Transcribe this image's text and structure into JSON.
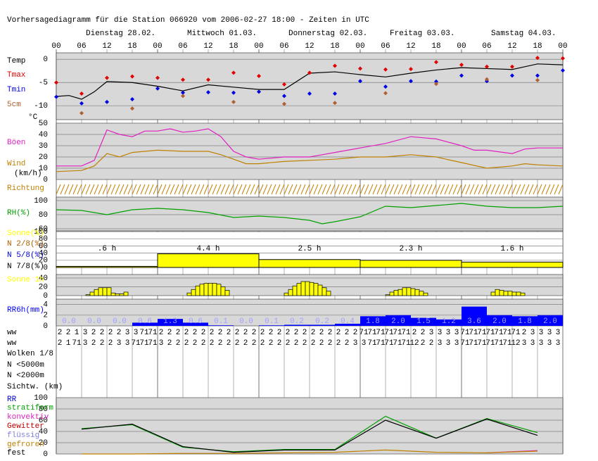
{
  "header": {
    "title": "Vorhersagediagramm für die Station 066920 vom 2006-02-27 18:00 - Zeiten in UTC",
    "days": [
      "Dienstag 28.02.",
      "Mittwoch 01.03.",
      "Donnerstag 02.03.",
      "Freitag 03.03.",
      "Samstag 04.03."
    ],
    "hours": [
      "00",
      "06",
      "12",
      "18",
      "00",
      "06",
      "12",
      "18",
      "00",
      "06",
      "12",
      "18",
      "00",
      "06",
      "12",
      "18",
      "00",
      "06",
      "12",
      "18",
      "00"
    ]
  },
  "chart_data": [
    {
      "type": "line",
      "y_label": "°C",
      "ylim": [
        -13,
        1.4
      ],
      "yticks": [
        0,
        -5,
        -10
      ],
      "series": [
        {
          "name": "Temp",
          "color": "#000000",
          "style": "line",
          "x": [
            0,
            3,
            6,
            9,
            12,
            18,
            24,
            30,
            36,
            42,
            48,
            54,
            60,
            66,
            72,
            78,
            84,
            90,
            96,
            102,
            108,
            114,
            120
          ],
          "values": [
            -8,
            -7.8,
            -8.6,
            -7,
            -4.8,
            -5,
            -5.8,
            -6.8,
            -5.5,
            -6,
            -6.5,
            -6.5,
            -3,
            -2.7,
            -3.3,
            -3.8,
            -3,
            -2.3,
            -1.8,
            -2,
            -2.2,
            -1,
            -1.2
          ]
        },
        {
          "name": "Tmax",
          "color": "#e00000",
          "style": "diamond",
          "x": [
            0,
            6,
            12,
            18,
            24,
            30,
            36,
            42,
            48,
            54,
            60,
            66,
            72,
            78,
            84,
            90,
            96,
            102,
            108,
            114,
            120
          ],
          "values": [
            -5,
            -7.4,
            -4,
            -3.7,
            -4,
            -4.4,
            -4.4,
            -2.9,
            -3.6,
            -5.4,
            -2.9,
            -1.4,
            -2,
            -2.2,
            -2.1,
            -0.6,
            -1.2,
            -1.6,
            -1.6,
            0.3,
            0.2
          ]
        },
        {
          "name": "Tmin",
          "color": "#0000e0",
          "style": "diamond",
          "x": [
            0,
            6,
            12,
            18,
            24,
            30,
            36,
            42,
            48,
            54,
            60,
            66,
            72,
            78,
            84,
            90,
            96,
            102,
            108,
            114,
            120
          ],
          "values": [
            -8.1,
            -9.5,
            -9.2,
            -8.6,
            -6.3,
            -7.2,
            -7.1,
            -7.2,
            -7,
            -7.9,
            -7.4,
            -7.4,
            -4.7,
            -5.9,
            -4.7,
            -4.8,
            -3.5,
            -4.7,
            -3.5,
            -3.5,
            -2.4
          ]
        },
        {
          "name": "5cm",
          "color": "#b06030",
          "style": "diamond",
          "x": [
            6,
            18,
            30,
            42,
            54,
            66,
            78,
            90,
            102,
            114
          ],
          "values": [
            -11.6,
            -10.6,
            -7.9,
            -9.2,
            -9.6,
            -9.4,
            -7.3,
            -5.3,
            -4.3,
            -4.5
          ]
        }
      ]
    },
    {
      "type": "line",
      "y_label": "(km/h)",
      "ylim": [
        0,
        50
      ],
      "yticks": [
        0,
        10,
        20,
        30,
        40,
        50
      ],
      "series": [
        {
          "name": "Böen",
          "color": "#e020c0",
          "style": "line",
          "x": [
            0,
            6,
            9,
            12,
            15,
            18,
            21,
            24,
            27,
            30,
            33,
            36,
            39,
            42,
            45,
            48,
            54,
            60,
            63,
            66,
            72,
            78,
            84,
            90,
            96,
            99,
            102,
            108,
            111,
            114,
            120
          ],
          "values": [
            12,
            12,
            17,
            44,
            40,
            38,
            43,
            43,
            45,
            42,
            43,
            45,
            38,
            25,
            20,
            18,
            20,
            20,
            22,
            24,
            28,
            32,
            38,
            36,
            30,
            26,
            26,
            23,
            27,
            28,
            28
          ]
        },
        {
          "name": "Wind",
          "color": "#c08000",
          "style": "line",
          "x": [
            0,
            6,
            9,
            12,
            15,
            18,
            24,
            30,
            36,
            39,
            42,
            45,
            48,
            54,
            60,
            66,
            72,
            78,
            84,
            90,
            96,
            102,
            108,
            111,
            114,
            120
          ],
          "values": [
            7,
            8,
            12,
            23,
            20,
            24,
            26,
            25,
            25,
            22,
            18,
            14,
            14,
            16,
            17,
            18,
            20,
            20,
            22,
            20,
            15,
            10,
            12,
            14,
            13,
            12
          ]
        }
      ]
    },
    {
      "type": "direction",
      "title": "Richtung",
      "color": "#c08000"
    },
    {
      "type": "line",
      "ylim": [
        57,
        105
      ],
      "yticks": [
        60,
        80,
        100
      ],
      "series": [
        {
          "name": "RH(%)",
          "color": "#00a000",
          "style": "line",
          "x": [
            0,
            6,
            12,
            18,
            24,
            30,
            36,
            42,
            48,
            54,
            60,
            63,
            66,
            72,
            78,
            84,
            90,
            96,
            102,
            108,
            114,
            120
          ],
          "values": [
            87,
            86,
            80,
            87,
            89,
            87,
            83,
            76,
            78,
            76,
            72,
            67,
            70,
            77,
            92,
            90,
            93,
            96,
            92,
            90,
            90,
            92
          ]
        }
      ]
    },
    {
      "type": "bar",
      "ylim": [
        0,
        100
      ],
      "yticks": [
        0,
        20,
        40,
        60,
        80,
        100
      ],
      "series": [
        {
          "name": "Sonne(%)",
          "color": "#ffff00",
          "style": "dayblock",
          "x": [
            0,
            24,
            48,
            72,
            96
          ],
          "values": [
            3,
            38,
            22,
            20,
            15
          ],
          "durations": [
            ".6 h",
            "4.4 h",
            "2.5 h",
            "2.3 h",
            "1.6 h"
          ]
        },
        {
          "name": "N 2/8(%)",
          "color": "#b06000",
          "style": "line",
          "x": [
            0
          ],
          "values": [
            null
          ]
        },
        {
          "name": "N 5/8(%)",
          "color": "#0000e0",
          "style": "line",
          "x": [
            0
          ],
          "values": [
            null
          ]
        },
        {
          "name": "N 7/8(%)",
          "color": "#000000",
          "style": "line",
          "x": [
            0
          ],
          "values": [
            null
          ]
        }
      ]
    },
    {
      "type": "bar",
      "ylim": [
        0,
        48
      ],
      "yticks": [
        0,
        20,
        40
      ],
      "series": [
        {
          "name": "Sonne 1h",
          "color": "#ffff00",
          "style": "hourbar",
          "x": [
            7,
            8,
            9,
            10,
            11,
            12,
            13,
            14,
            15,
            16,
            31,
            32,
            33,
            34,
            35,
            36,
            37,
            38,
            39,
            40,
            54,
            55,
            56,
            57,
            58,
            59,
            60,
            61,
            62,
            63,
            64,
            78,
            79,
            80,
            81,
            82,
            83,
            84,
            85,
            86,
            87,
            103,
            104,
            105,
            106,
            107,
            108,
            109,
            110
          ],
          "values": [
            2,
            8,
            14,
            18,
            18,
            18,
            6,
            4,
            4,
            8,
            6,
            14,
            22,
            26,
            28,
            28,
            28,
            26,
            20,
            12,
            6,
            14,
            22,
            28,
            32,
            32,
            30,
            28,
            24,
            18,
            10,
            2,
            8,
            12,
            14,
            18,
            18,
            16,
            14,
            10,
            6,
            8,
            14,
            12,
            10,
            10,
            8,
            8,
            6
          ]
        }
      ]
    },
    {
      "type": "bar",
      "ylim": [
        0,
        5
      ],
      "yticks": [
        0,
        2,
        4
      ],
      "series": [
        {
          "name": "RR6h(mm)",
          "color": "#0000ff",
          "style": "rrbar",
          "x": [
            0,
            6,
            12,
            18,
            24,
            30,
            36,
            42,
            48,
            54,
            60,
            66,
            72,
            78,
            84,
            90,
            96,
            102,
            108,
            114
          ],
          "values": [
            0,
            0,
            0,
            0.6,
            1.3,
            0.6,
            0.1,
            0,
            0.1,
            0.2,
            0.2,
            0.4,
            1.8,
            2,
            1.5,
            1.2,
            3.6,
            2,
            1.8,
            2
          ],
          "value_labels": [
            "0.0",
            "0.0",
            "0.0",
            "0.6",
            "1.3",
            "0.6",
            "0.1",
            "0.0",
            "0.1",
            "0.2",
            "0.2",
            "0.4",
            "1.8",
            "2.0",
            "1.5",
            "1.2",
            "3.6",
            "2.0",
            "1.8",
            "2.0"
          ]
        }
      ]
    },
    {
      "type": "codes",
      "labels": [
        "ww",
        "ww"
      ],
      "rows": [
        [
          "2",
          "2",
          "1",
          "3",
          "2",
          "2",
          "2",
          "2",
          "3",
          "3",
          "71",
          "71",
          "2",
          "2",
          "2",
          "2",
          "2",
          "2",
          "2",
          "2",
          "2",
          "2",
          "2",
          "2",
          "2",
          "2",
          "2",
          "2",
          "2",
          "2",
          "2",
          "2",
          "2",
          "2",
          "2",
          "2",
          "71",
          "71",
          "71",
          "71",
          "71",
          "71",
          "2",
          "2",
          "3",
          "3",
          "3",
          "3",
          "71",
          "71",
          "71",
          "71",
          "71",
          "71",
          "71",
          "2",
          "3",
          "3",
          "3",
          "3"
        ],
        [
          "2",
          "1",
          "71",
          "3",
          "2",
          "2",
          "2",
          "3",
          "3",
          "71",
          "71",
          "71",
          "3",
          "2",
          "2",
          "2",
          "2",
          "2",
          "2",
          "2",
          "2",
          "2",
          "2",
          "2",
          "2",
          "2",
          "2",
          "2",
          "2",
          "2",
          "2",
          "2",
          "2",
          "2",
          "2",
          "3",
          "3",
          "71",
          "71",
          "71",
          "71",
          "71",
          "12",
          "2",
          "2",
          "3",
          "3",
          "3",
          "71",
          "71",
          "71",
          "71",
          "71",
          "71",
          "12",
          "3",
          "3",
          "3",
          "3",
          "3"
        ]
      ]
    },
    {
      "type": "rows",
      "labels": [
        "Wolken 1/8",
        "N <5000m",
        "N <2000m",
        "Sichtw. (km)"
      ]
    },
    {
      "type": "line",
      "ylim": [
        0,
        100
      ],
      "yticks": [
        0,
        20,
        40,
        60,
        80,
        100
      ],
      "series": [
        {
          "name": "RR",
          "color": "#0000e0",
          "style": "line",
          "x": [
            6
          ],
          "values": [
            null
          ]
        },
        {
          "name": "stratiform",
          "color": "#00a000",
          "style": "line",
          "x": [
            6,
            18,
            30,
            42,
            54,
            66,
            78,
            90,
            102,
            114
          ],
          "values": [
            45,
            52,
            12,
            4,
            8,
            8,
            67,
            28,
            63,
            38
          ]
        },
        {
          "name": "konvektiv",
          "color": "#e020c0",
          "style": "line",
          "x": [
            6,
            18,
            30,
            42,
            54,
            66,
            78,
            90,
            102,
            114
          ],
          "values": [
            null,
            null,
            null,
            null,
            null,
            null,
            null,
            null,
            2,
            6
          ]
        },
        {
          "name": "Gewitter",
          "color": "#c00000",
          "style": "line",
          "x": [
            6
          ],
          "values": [
            null
          ]
        },
        {
          "name": "flüssig",
          "color": "#8080e0",
          "style": "line",
          "x": [
            6
          ],
          "values": [
            null
          ]
        },
        {
          "name": "gefroren",
          "color": "#c08000",
          "style": "line",
          "x": [
            6,
            18,
            30,
            42,
            54,
            66,
            78,
            90,
            102,
            114
          ],
          "values": [
            0,
            0,
            1,
            1,
            2,
            3,
            7,
            3,
            2,
            5
          ]
        },
        {
          "name": "fest",
          "color": "#000000",
          "style": "line",
          "x": [
            6,
            18,
            30,
            42,
            54,
            66,
            78,
            90,
            102,
            114
          ],
          "values": [
            44,
            53,
            13,
            3,
            7,
            7,
            60,
            28,
            62,
            33
          ]
        }
      ]
    }
  ]
}
